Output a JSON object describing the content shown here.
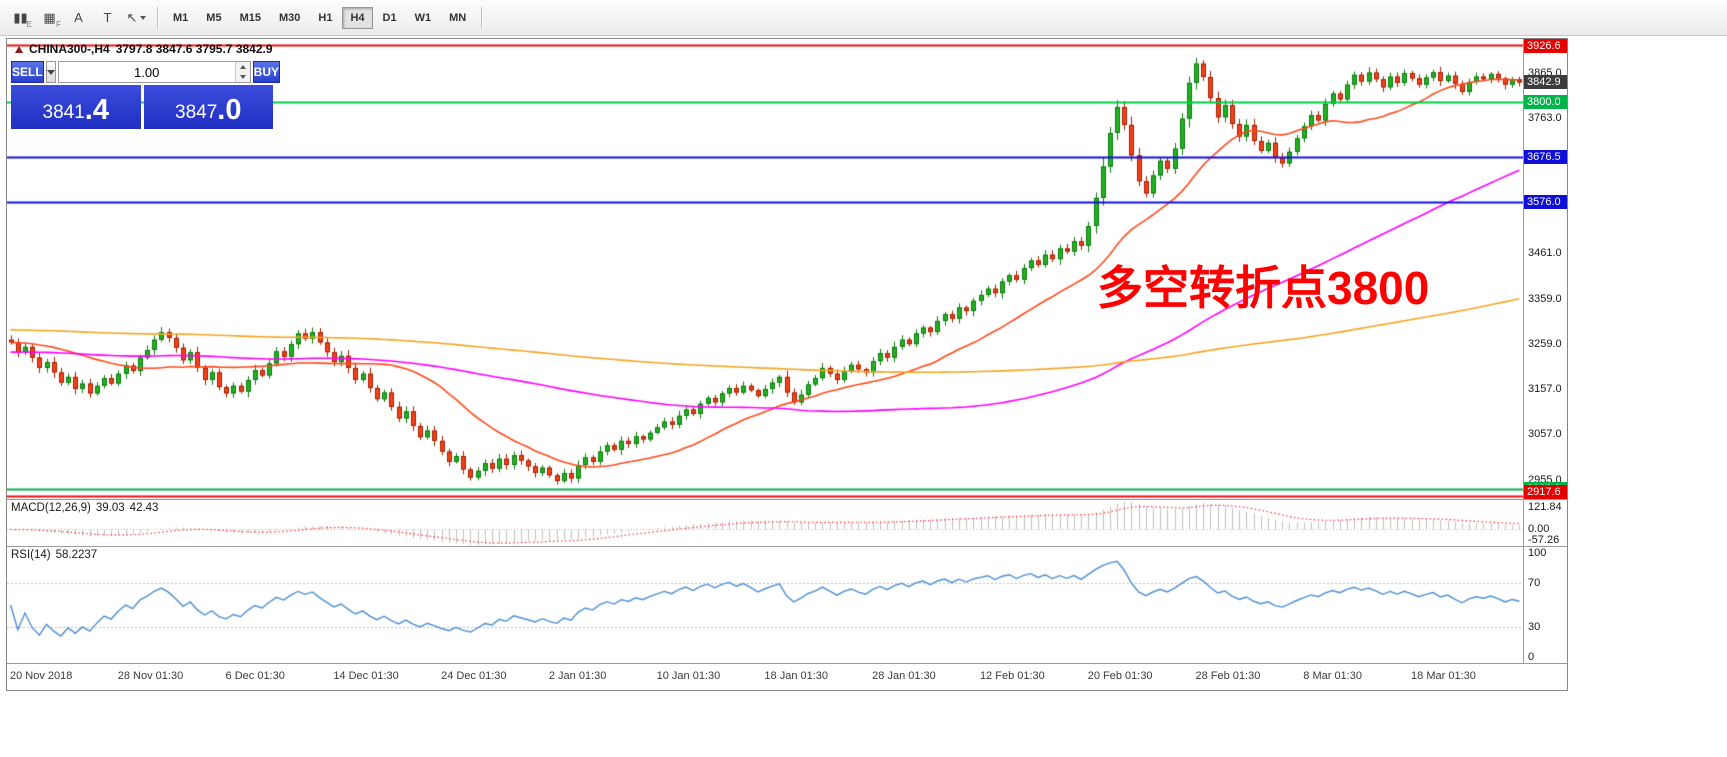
{
  "toolbar": {
    "tools": [
      {
        "name": "bar-chart-icon",
        "glyph": "▮▮",
        "sub": "E"
      },
      {
        "name": "grid-icon",
        "glyph": "▦",
        "sub": "F"
      },
      {
        "name": "text-tool-icon",
        "glyph": "A",
        "sub": ""
      },
      {
        "name": "label-tool-icon",
        "glyph": "T",
        "sub": ""
      },
      {
        "name": "cursor-tool-icon",
        "glyph": "↖",
        "sub": "",
        "dropdown": true
      }
    ],
    "timeframes": [
      "M1",
      "M5",
      "M15",
      "M30",
      "H1",
      "H4",
      "D1",
      "W1",
      "MN"
    ],
    "active_timeframe": "H4"
  },
  "chart": {
    "symbol_title": "CHINA300-,H4",
    "ohlc_text": "3797.8 3847.6 3795.7 3842.9",
    "annotation": "多空转折点3800",
    "macd_name": "MACD(12,26,9)",
    "macd_v1": "39.03",
    "macd_v2": "42.43",
    "rsi_name": "RSI(14)",
    "rsi_v1": "58.2237"
  },
  "trade_panel": {
    "sell_label": "SELL",
    "buy_label": "BUY",
    "volume": "1.00",
    "sell_price_main": "3841",
    "sell_price_frac": ".4",
    "buy_price_main": "3847",
    "buy_price_frac": ".0"
  },
  "price_axis": {
    "labels": [
      {
        "text": "3865.0",
        "price": 3865.0
      },
      {
        "text": "3763.0",
        "price": 3763.0
      },
      {
        "text": "3461.0",
        "price": 3461.0
      },
      {
        "text": "3359.0",
        "price": 3359.0
      },
      {
        "text": "3259.0",
        "price": 3259.0
      },
      {
        "text": "3157.0",
        "price": 3157.0
      },
      {
        "text": "3057.0",
        "price": 3057.0
      },
      {
        "text": "2955.0",
        "price": 2955.0
      }
    ],
    "badges": [
      {
        "text": "3926.6",
        "price": 3926.6,
        "type": "red"
      },
      {
        "text": "3842.9",
        "price": 3842.9,
        "type": "dark"
      },
      {
        "text": "3800.0",
        "price": 3800.0,
        "type": "green"
      },
      {
        "text": "3676.5",
        "price": 3676.5,
        "type": "blue"
      },
      {
        "text": "3576.0",
        "price": 3576.0,
        "type": "blue"
      },
      {
        "text": "2933.8",
        "price": 2933.8,
        "type": "green"
      },
      {
        "text": "2917.6",
        "price": 2917.6,
        "type": "red"
      }
    ]
  },
  "macd_axis": [
    {
      "text": "121.84",
      "pos": "max"
    },
    {
      "text": "0.00",
      "pos": "zero"
    },
    {
      "text": "-57.26",
      "pos": "min"
    }
  ],
  "rsi_axis": [
    {
      "text": "100",
      "v": 100
    },
    {
      "text": "70",
      "v": 70
    },
    {
      "text": "30",
      "v": 30
    },
    {
      "text": "0",
      "v": 0
    }
  ],
  "time_axis": [
    "20 Nov 2018",
    "28 Nov 01:30",
    "6 Dec 01:30",
    "14 Dec 01:30",
    "24 Dec 01:30",
    "2 Jan 01:30",
    "10 Jan 01:30",
    "18 Jan 01:30",
    "28 Jan 01:30",
    "12 Feb 01:30",
    "20 Feb 01:30",
    "28 Feb 01:30",
    "8 Mar 01:30",
    "18 Mar 01:30"
  ],
  "chart_data": {
    "type": "candlestick",
    "symbol": "CHINA300-",
    "timeframe": "H4",
    "ohlc_current": {
      "open": 3797.8,
      "high": 3847.6,
      "low": 3795.7,
      "close": 3842.9
    },
    "price_view": [
      2912,
      3940
    ],
    "closes": [
      3262,
      3240,
      3252,
      3228,
      3205,
      3218,
      3195,
      3172,
      3185,
      3158,
      3170,
      3148,
      3165,
      3182,
      3170,
      3192,
      3210,
      3198,
      3228,
      3245,
      3268,
      3285,
      3272,
      3250,
      3222,
      3240,
      3205,
      3178,
      3195,
      3162,
      3148,
      3165,
      3152,
      3178,
      3200,
      3188,
      3215,
      3242,
      3230,
      3258,
      3282,
      3270,
      3285,
      3262,
      3240,
      3218,
      3232,
      3205,
      3178,
      3192,
      3160,
      3135,
      3150,
      3118,
      3092,
      3108,
      3075,
      3050,
      3065,
      3042,
      3018,
      2995,
      3008,
      2978,
      2960,
      2975,
      2992,
      2980,
      3002,
      2988,
      3010,
      2998,
      2985,
      2970,
      2982,
      2965,
      2952,
      2970,
      2958,
      2988,
      3005,
      2995,
      3018,
      3032,
      3022,
      3042,
      3035,
      3052,
      3045,
      3060,
      3072,
      3085,
      3078,
      3098,
      3112,
      3102,
      3125,
      3138,
      3128,
      3148,
      3160,
      3150,
      3165,
      3155,
      3142,
      3158,
      3172,
      3185,
      3150,
      3128,
      3145,
      3168,
      3182,
      3205,
      3192,
      3178,
      3198,
      3212,
      3202,
      3195,
      3220,
      3238,
      3228,
      3252,
      3268,
      3258,
      3282,
      3295,
      3285,
      3310,
      3325,
      3315,
      3340,
      3332,
      3355,
      3368,
      3382,
      3372,
      3398,
      3412,
      3402,
      3428,
      3445,
      3435,
      3458,
      3448,
      3472,
      3465,
      3488,
      3478,
      3522,
      3585,
      3655,
      3730,
      3788,
      3748,
      3680,
      3622,
      3595,
      3635,
      3668,
      3650,
      3695,
      3762,
      3842,
      3885,
      3855,
      3808,
      3765,
      3792,
      3750,
      3722,
      3748,
      3712,
      3690,
      3708,
      3675,
      3662,
      3688,
      3718,
      3745,
      3770,
      3758,
      3795,
      3818,
      3805,
      3838,
      3860,
      3845,
      3865,
      3850,
      3832,
      3856,
      3842,
      3864,
      3852,
      3838,
      3854,
      3866,
      3846,
      3858,
      3840,
      3822,
      3844,
      3856,
      3850,
      3862,
      3852,
      3838,
      3850,
      3843
    ],
    "levels": [
      {
        "price": 3926.6,
        "color": "#ee1111",
        "width": 2
      },
      {
        "price": 3800.0,
        "color": "#00cc44",
        "width": 2
      },
      {
        "price": 3676.5,
        "color": "#1111dd",
        "width": 2
      },
      {
        "price": 3576.0,
        "color": "#1111dd",
        "width": 2
      },
      {
        "price": 2933.8,
        "color": "#00b44a",
        "width": 2
      },
      {
        "price": 2917.6,
        "color": "#ee1111",
        "width": 2
      }
    ],
    "moving_averages": [
      {
        "name": "ma-fast",
        "period": 21,
        "color": "#ff4a1d",
        "pad": null
      },
      {
        "name": "ma-mid",
        "period": 89,
        "color": "#ff00ff",
        "pad": 3240
      },
      {
        "name": "ma-slow",
        "period": 200,
        "color": "#f5a623",
        "pad": 3290
      }
    ],
    "macd": {
      "fast": 12,
      "slow": 26,
      "signal": 9,
      "current": [
        39.03,
        42.43
      ]
    },
    "rsi": {
      "period": 14,
      "current": 58.2237,
      "levels": [
        30,
        70
      ]
    }
  },
  "colors": {
    "up": "#23b123",
    "up_edge": "#0e7a10",
    "down": "#f2411c",
    "down_edge": "#a32000",
    "macd_hist": "#bfbfbf",
    "macd_signal": "#ff3333",
    "rsi_line": "#4a8fd4",
    "grid_dots": "#c0c0c0"
  }
}
